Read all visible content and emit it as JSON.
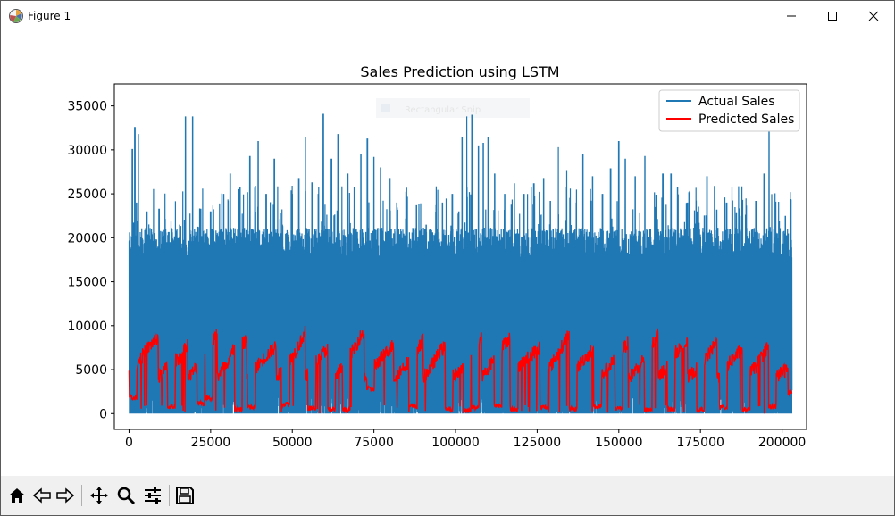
{
  "window": {
    "title": "Figure 1",
    "icons": [
      "matplotlib-logo-icon",
      "minimize-icon",
      "maximize-icon",
      "close-icon"
    ]
  },
  "toolbar": {
    "buttons": [
      {
        "name": "home-icon",
        "label": "Home"
      },
      {
        "name": "back-icon",
        "label": "Back"
      },
      {
        "name": "forward-icon",
        "label": "Forward"
      },
      {
        "name": "pan-icon",
        "label": "Pan"
      },
      {
        "name": "zoom-icon",
        "label": "Zoom"
      },
      {
        "name": "configure-subplots-icon",
        "label": "Configure subplots"
      },
      {
        "name": "save-icon",
        "label": "Save"
      }
    ]
  },
  "tooltip": {
    "text": "Rectangular Snip"
  },
  "chart_data": {
    "type": "line",
    "title": "Sales Prediction using LSTM",
    "xlabel": "",
    "ylabel": "",
    "xlim": [
      -4500,
      207500
    ],
    "ylim": [
      -1800,
      37500
    ],
    "xticks": [
      0,
      25000,
      50000,
      75000,
      100000,
      125000,
      150000,
      175000,
      200000
    ],
    "yticks": [
      0,
      5000,
      10000,
      15000,
      20000,
      25000,
      30000,
      35000
    ],
    "grid": false,
    "legend_position": "upper right",
    "colors": {
      "actual": "#1f77b4",
      "predicted": "#ff0000"
    },
    "series": [
      {
        "name": "Actual Sales",
        "color": "#1f77b4",
        "x_range": [
          0,
          203000
        ],
        "min": 0,
        "max": 34200,
        "typical_band": [
          3000,
          18000
        ],
        "spike_peaks": [
          [
            1000,
            30100
          ],
          [
            1800,
            32600
          ],
          [
            2300,
            24000
          ],
          [
            2800,
            31800
          ],
          [
            5500,
            23000
          ],
          [
            9200,
            23300
          ],
          [
            12500,
            19500
          ],
          [
            15500,
            21500
          ],
          [
            17300,
            33800
          ],
          [
            19500,
            33800
          ],
          [
            22000,
            23300
          ],
          [
            25000,
            23000
          ],
          [
            29000,
            25000
          ],
          [
            31000,
            27300
          ],
          [
            34000,
            25800
          ],
          [
            37000,
            29300
          ],
          [
            39500,
            31000
          ],
          [
            42000,
            25000
          ],
          [
            44500,
            29000
          ],
          [
            47000,
            21500
          ],
          [
            50000,
            25000
          ],
          [
            52000,
            26800
          ],
          [
            54000,
            31500
          ],
          [
            56000,
            26300
          ],
          [
            58000,
            25000
          ],
          [
            59500,
            34100
          ],
          [
            62000,
            29000
          ],
          [
            64000,
            31800
          ],
          [
            67000,
            27300
          ],
          [
            69000,
            25800
          ],
          [
            71000,
            29500
          ],
          [
            73000,
            31300
          ],
          [
            75000,
            29200
          ],
          [
            77000,
            28000
          ],
          [
            80000,
            26800
          ],
          [
            82000,
            24000
          ],
          [
            85000,
            25700
          ],
          [
            88000,
            23700
          ],
          [
            91000,
            21500
          ],
          [
            94000,
            23700
          ],
          [
            96000,
            24000
          ],
          [
            99000,
            25000
          ],
          [
            101000,
            23000
          ],
          [
            102000,
            31500
          ],
          [
            103500,
            33800
          ],
          [
            105000,
            34000
          ],
          [
            107000,
            30500
          ],
          [
            108500,
            30800
          ],
          [
            110000,
            31500
          ],
          [
            112000,
            27300
          ],
          [
            115000,
            25000
          ],
          [
            118000,
            26200
          ],
          [
            121000,
            25000
          ],
          [
            124000,
            26200
          ],
          [
            127000,
            26800
          ],
          [
            129000,
            24200
          ],
          [
            131500,
            30300
          ],
          [
            134000,
            27700
          ],
          [
            137000,
            24000
          ],
          [
            139000,
            29500
          ],
          [
            142000,
            27000
          ],
          [
            145000,
            25000
          ],
          [
            147500,
            27900
          ],
          [
            150000,
            31000
          ],
          [
            152000,
            29000
          ],
          [
            155000,
            27000
          ],
          [
            158000,
            29300
          ],
          [
            161000,
            23500
          ],
          [
            163500,
            27300
          ],
          [
            166000,
            27300
          ],
          [
            168000,
            25800
          ],
          [
            171000,
            24000
          ],
          [
            174000,
            23000
          ],
          [
            177000,
            27000
          ],
          [
            180000,
            23200
          ],
          [
            183000,
            24000
          ],
          [
            186000,
            22800
          ],
          [
            189000,
            22000
          ],
          [
            192000,
            24200
          ],
          [
            194500,
            27300
          ],
          [
            196000,
            32300
          ],
          [
            198500,
            20500
          ],
          [
            201000,
            22500
          ],
          [
            202500,
            25200
          ]
        ]
      },
      {
        "name": "Predicted Sales",
        "color": "#ff0000",
        "x_range": [
          0,
          203000
        ],
        "min": 0,
        "max": 10200,
        "cycle_peaks": [
          [
            1000,
            9000
          ],
          [
            1800,
            10200
          ],
          [
            16000,
            7200
          ],
          [
            17500,
            7900
          ],
          [
            32000,
            9800
          ],
          [
            36000,
            8200
          ],
          [
            38500,
            8000
          ],
          [
            46000,
            7600
          ],
          [
            55000,
            9500
          ],
          [
            61000,
            8500
          ],
          [
            66000,
            8700
          ],
          [
            71000,
            9500
          ],
          [
            76000,
            8000
          ],
          [
            86000,
            7700
          ],
          [
            95000,
            9300
          ],
          [
            103000,
            7000
          ],
          [
            105500,
            8500
          ],
          [
            111000,
            9500
          ],
          [
            117000,
            8800
          ],
          [
            126000,
            7500
          ],
          [
            135000,
            9500
          ],
          [
            142000,
            8000
          ],
          [
            149000,
            8000
          ],
          [
            158000,
            8400
          ],
          [
            165000,
            9500
          ],
          [
            174000,
            7200
          ],
          [
            181000,
            8300
          ],
          [
            188000,
            7800
          ],
          [
            196000,
            9000
          ],
          [
            202500,
            6000
          ]
        ],
        "drop_points": [
          [
            1200,
            1500
          ],
          [
            13000,
            500
          ],
          [
            22000,
            800
          ],
          [
            24500,
            1500
          ],
          [
            33500,
            200
          ],
          [
            37500,
            400
          ],
          [
            48000,
            800
          ],
          [
            56000,
            300
          ],
          [
            62000,
            200
          ],
          [
            66500,
            100
          ],
          [
            74000,
            2500
          ],
          [
            87000,
            500
          ],
          [
            98000,
            200
          ],
          [
            103500,
            0
          ],
          [
            106000,
            400
          ],
          [
            113000,
            600
          ],
          [
            118000,
            200
          ],
          [
            127000,
            400
          ],
          [
            136000,
            200
          ],
          [
            143500,
            500
          ],
          [
            150000,
            300
          ],
          [
            159000,
            100
          ],
          [
            166000,
            200
          ],
          [
            175000,
            100
          ],
          [
            182000,
            400
          ],
          [
            189000,
            100
          ],
          [
            197000,
            500
          ],
          [
            203000,
            2000
          ]
        ],
        "typical_band": [
          4000,
          6500
        ]
      }
    ]
  }
}
